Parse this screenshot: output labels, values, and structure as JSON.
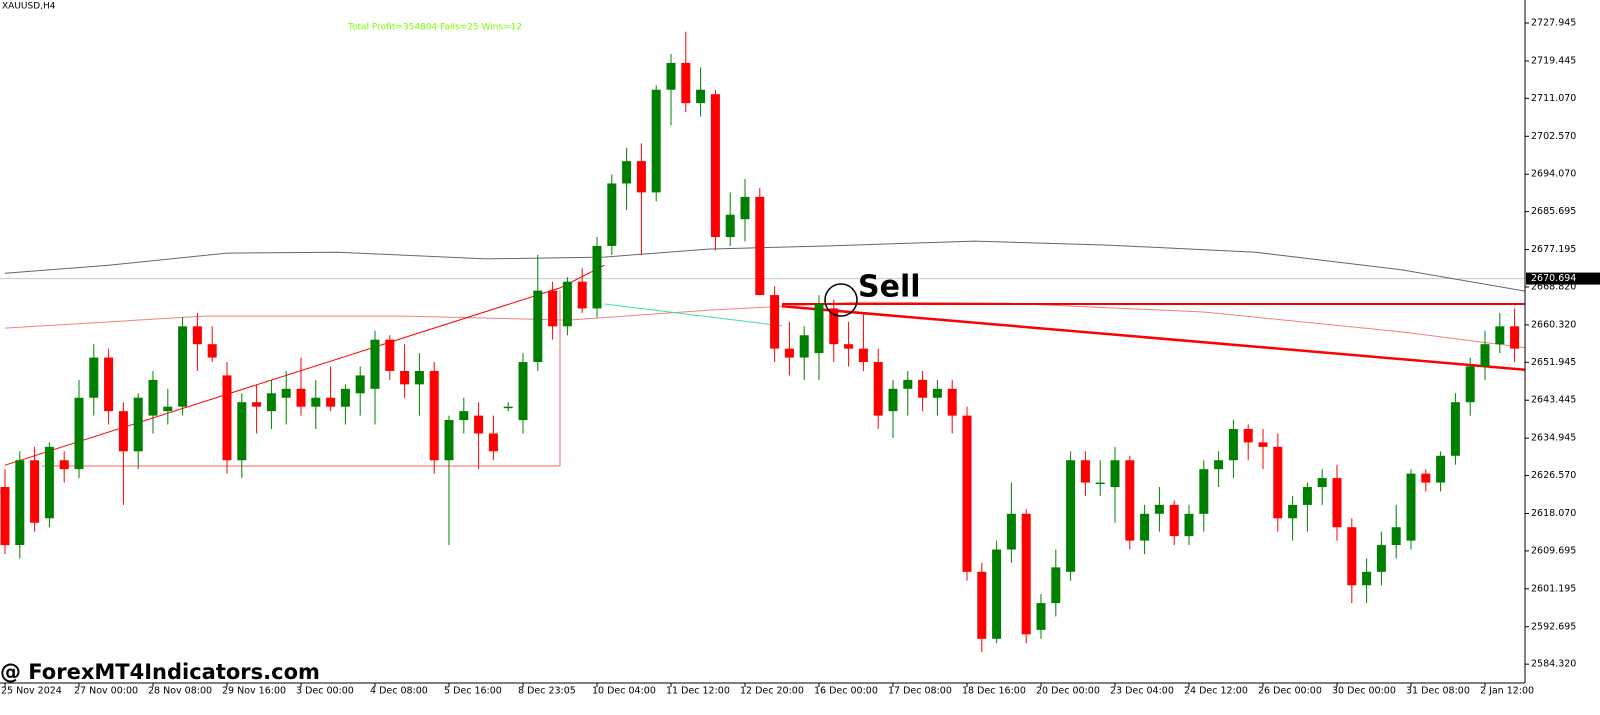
{
  "chart_data": {
    "type": "candlestick",
    "symbol": "XAUUSD,H4",
    "annotation": "Total Profit=354804 Fails=25 Wins=12",
    "signal_label": "Sell",
    "watermark": "@ ForexMT4Indicators.com",
    "current_price": 2670.694,
    "up_color": "#008000",
    "down_color": "#ff0000",
    "categories": [
      "25 Nov 2024",
      null,
      null,
      null,
      null,
      "27 Nov 00:00",
      null,
      null,
      null,
      null,
      "28 Nov 08:00",
      null,
      null,
      null,
      null,
      "29 Nov 16:00",
      null,
      null,
      null,
      null,
      "3 Dec 00:00",
      null,
      null,
      null,
      null,
      "4 Dec 08:00",
      null,
      null,
      null,
      null,
      "5 Dec 16:00",
      null,
      null,
      null,
      null,
      "8 Dec 23:05",
      null,
      null,
      null,
      null,
      "10 Dec 04:00",
      null,
      null,
      null,
      null,
      "11 Dec 12:00",
      null,
      null,
      null,
      null,
      "12 Dec 20:00",
      null,
      null,
      null,
      null,
      "16 Dec 00:00",
      null,
      null,
      null,
      null,
      "17 Dec 08:00",
      null,
      null,
      null,
      null,
      "18 Dec 16:00",
      null,
      null,
      null,
      null,
      "20 Dec 00:00",
      null,
      null,
      null,
      null,
      "23 Dec 04:00",
      null,
      null,
      null,
      null,
      "24 Dec 12:00",
      null,
      null,
      null,
      null,
      "26 Dec 00:00",
      null,
      null,
      null,
      null,
      "30 Dec 00:00",
      null,
      null,
      null,
      null,
      "31 Dec 08:00",
      null,
      null,
      null,
      null,
      "2 Jan 12:00",
      null,
      null
    ],
    "open": [
      2624,
      2611,
      2630,
      2617,
      2630,
      2628,
      2644,
      2653,
      2641,
      2632,
      2640,
      2641,
      2642,
      2660,
      2656,
      2649,
      2630,
      2643,
      2641,
      2644,
      2646,
      2642,
      2644,
      2642,
      2645,
      2646,
      2657,
      2650,
      2647,
      2650,
      2630,
      2639,
      2640,
      2636,
      2642,
      2639,
      2652,
      2668,
      2660,
      2670,
      2664,
      2678,
      2692,
      2697,
      2690,
      2713,
      2719,
      2710,
      2712,
      2680,
      2684,
      2689,
      2667,
      2655,
      2653,
      2654,
      2664,
      2656,
      2655,
      2652,
      2641,
      2646,
      2648,
      2644,
      2646,
      2640,
      2605,
      2590,
      2610,
      2618,
      2592,
      2598,
      2605,
      2630,
      2625,
      2624,
      2630,
      2612,
      2618,
      2620,
      2613,
      2618,
      2628,
      2630,
      2637,
      2634,
      2633,
      2617,
      2620,
      2624,
      2626,
      2615,
      2602,
      2605,
      2611,
      2612,
      2627,
      2625,
      2631,
      2643,
      2651,
      2656,
      2660
    ],
    "high": [
      2628,
      2632,
      2633,
      2634,
      2632,
      2648,
      2656,
      2655,
      2643,
      2645,
      2650,
      2646,
      2662,
      2663,
      2660,
      2652,
      2645,
      2647,
      2648,
      2650,
      2653,
      2648,
      2651,
      2647,
      2651,
      2659,
      2658,
      2656,
      2654,
      2652,
      2640,
      2644,
      2643,
      2640,
      2643,
      2654,
      2676,
      2670,
      2671,
      2673,
      2680,
      2694,
      2700,
      2701,
      2714,
      2721,
      2726,
      2718,
      2713,
      2690,
      2693,
      2691,
      2669,
      2661,
      2660,
      2667,
      2666,
      2661,
      2663,
      2655,
      2648,
      2650,
      2650,
      2648,
      2648,
      2642,
      2607,
      2612,
      2625,
      2619,
      2600,
      2610,
      2632,
      2632,
      2630,
      2633,
      2631,
      2620,
      2624,
      2621,
      2620,
      2630,
      2632,
      2639,
      2638,
      2637,
      2636,
      2622,
      2625,
      2628,
      2629,
      2617,
      2608,
      2614,
      2620,
      2628,
      2628,
      2632,
      2645,
      2653,
      2659,
      2663,
      2664
    ],
    "low": [
      2609,
      2608,
      2614,
      2615,
      2625,
      2626,
      2640,
      2638,
      2620,
      2628,
      2636,
      2638,
      2640,
      2650,
      2652,
      2627,
      2626,
      2636,
      2637,
      2638,
      2640,
      2637,
      2641,
      2638,
      2640,
      2638,
      2648,
      2644,
      2640,
      2627,
      2611,
      2636,
      2628,
      2630,
      2641,
      2636,
      2650,
      2657,
      2658,
      2663,
      2662,
      2676,
      2686,
      2676,
      2688,
      2705,
      2708,
      2707,
      2677,
      2678,
      2679,
      2668,
      2652,
      2649,
      2648,
      2648,
      2652,
      2651,
      2650,
      2637,
      2635,
      2640,
      2641,
      2640,
      2636,
      2603,
      2587,
      2589,
      2607,
      2589,
      2590,
      2595,
      2603,
      2622,
      2622,
      2616,
      2610,
      2609,
      2614,
      2611,
      2611,
      2614,
      2624,
      2626,
      2630,
      2628,
      2614,
      2612,
      2614,
      2620,
      2612,
      2598,
      2598,
      2602,
      2608,
      2610,
      2623,
      2623,
      2629,
      2640,
      2648,
      2654,
      2652
    ],
    "close": [
      2611,
      2630,
      2616,
      2633,
      2628,
      2644,
      2653,
      2641,
      2632,
      2644,
      2648,
      2642,
      2660,
      2656,
      2653,
      2630,
      2643,
      2642,
      2645,
      2646,
      2642,
      2644,
      2642,
      2646,
      2649,
      2657,
      2650,
      2647,
      2650,
      2630,
      2639,
      2641,
      2636,
      2632,
      2642,
      2652,
      2668,
      2660,
      2670,
      2664,
      2678,
      2692,
      2697,
      2690,
      2713,
      2719,
      2710,
      2713,
      2680,
      2685,
      2689,
      2667,
      2655,
      2653,
      2658,
      2665,
      2656,
      2655,
      2652,
      2640,
      2646,
      2648,
      2644,
      2646,
      2640,
      2605,
      2590,
      2610,
      2618,
      2591,
      2598,
      2606,
      2630,
      2625,
      2625,
      2630,
      2612,
      2618,
      2620,
      2613,
      2618,
      2628,
      2630,
      2637,
      2634,
      2633,
      2617,
      2620,
      2624,
      2626,
      2615,
      2602,
      2605,
      2611,
      2615,
      2627,
      2625,
      2631,
      2643,
      2651,
      2656,
      2660,
      2655
    ],
    "overlays": [
      {
        "color": "#666666",
        "width": 1,
        "x": [
          0,
          7,
          15,
          22.5,
          32.5,
          40.5,
          47.5,
          55.5,
          65.5,
          74.5,
          84.5,
          94.5,
          103
        ],
        "y": [
          2671.9,
          2673.7,
          2676.4,
          2676.6,
          2675.1,
          2675.5,
          2677.3,
          2678.0,
          2679.1,
          2678.2,
          2676.6,
          2672.6,
          2667.7
        ]
      },
      {
        "color": "#f08080",
        "width": 1,
        "x": [
          0,
          13.5,
          27,
          38,
          47.5,
          57.5,
          67.5,
          81,
          94.5,
          103
        ],
        "y": [
          2659.6,
          2662.3,
          2662.3,
          2661.4,
          2663.6,
          2665.4,
          2665.2,
          2663.2,
          2658.7,
          2655.1
        ]
      },
      {
        "color": "#ff0000",
        "width": 1,
        "x": [
          0,
          37.5,
          40.5
        ],
        "y": [
          2628.9,
          2668.6,
          2673.7
        ]
      },
      {
        "color": "#ff6060",
        "width": 1,
        "x": [
          2.5,
          37.5,
          37.5
        ],
        "y": [
          2628.7,
          2628.7,
          2668.0
        ]
      },
      {
        "color": "#40e0a0",
        "width": 1,
        "x": [
          40.5,
          52.5
        ],
        "y": [
          2665.0,
          2660.1
        ]
      },
      {
        "color": "#ff0000",
        "width": 2,
        "x": [
          52.5,
          103
        ],
        "y": [
          2665.0,
          2665.0
        ]
      },
      {
        "color": "#ff0000",
        "width": 2.5,
        "x": [
          52.5,
          103
        ],
        "y": [
          2664.5,
          2650.2
        ]
      }
    ],
    "ylim": [
      2580.1,
      2733.1
    ],
    "yticks": [
      2727.945,
      2719.445,
      {
        "value": 2711.07,
        "label": "2711.070"
      },
      {
        "value": 2702.57,
        "label": "2702.570"
      },
      {
        "value": 2694.07,
        "label": "2694.070"
      },
      2685.695,
      2677.195,
      {
        "value": 2668.82,
        "label": "2668.820"
      },
      {
        "value": 2660.32,
        "label": "2660.320"
      },
      2651.945,
      2643.445,
      2634.945,
      {
        "value": 2626.57,
        "label": "2626.570"
      },
      {
        "value": 2618.07,
        "label": "2618.070"
      },
      2609.695,
      2601.195,
      2592.695,
      {
        "value": 2584.32,
        "label": "2584.320"
      }
    ]
  }
}
